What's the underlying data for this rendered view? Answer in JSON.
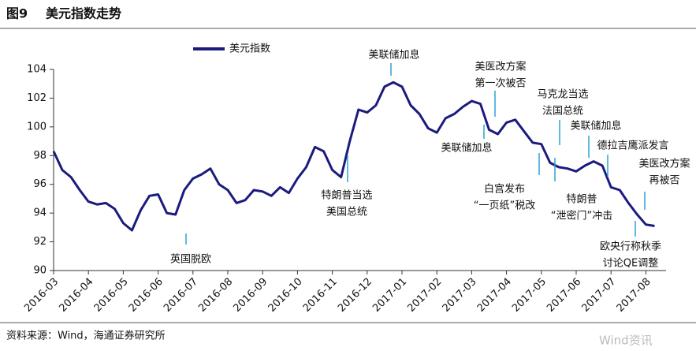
{
  "chart_data": {
    "type": "line",
    "figure_label": "图9",
    "title": "美元指数走势",
    "source": "资料来源：Wind，海通证券研究所",
    "watermark": "Wind资讯",
    "x": [
      "2016-03",
      null,
      null,
      null,
      "2016-04",
      null,
      null,
      null,
      "2016-05",
      null,
      null,
      null,
      "2016-06",
      null,
      null,
      null,
      "2016-07",
      null,
      null,
      null,
      "2016-08",
      null,
      null,
      null,
      "2016-09",
      null,
      null,
      null,
      "2016-10",
      null,
      null,
      null,
      "2016-11",
      null,
      null,
      null,
      "2016-12",
      null,
      null,
      null,
      "2017-01",
      null,
      null,
      null,
      "2017-02",
      null,
      null,
      null,
      "2017-03",
      null,
      null,
      null,
      "2017-04",
      null,
      null,
      null,
      "2017-05",
      null,
      null,
      null,
      "2017-06",
      null,
      null,
      null,
      "2017-07",
      null,
      null,
      null,
      "2017-08",
      null
    ],
    "series": [
      {
        "name": "美元指数",
        "color": "#1b1b7e",
        "values": [
          98.3,
          97.0,
          96.5,
          95.6,
          94.8,
          94.6,
          94.7,
          94.3,
          93.3,
          92.8,
          94.2,
          95.2,
          95.3,
          94.0,
          93.9,
          95.6,
          96.4,
          96.7,
          97.1,
          96.0,
          95.6,
          94.7,
          94.9,
          95.6,
          95.5,
          95.2,
          95.8,
          95.4,
          96.4,
          97.2,
          98.6,
          98.3,
          97.0,
          96.5,
          99.0,
          101.2,
          101.0,
          101.5,
          102.8,
          103.1,
          102.8,
          101.5,
          100.9,
          99.9,
          99.6,
          100.6,
          100.9,
          101.4,
          101.8,
          101.6,
          99.8,
          99.5,
          100.3,
          100.5,
          99.7,
          98.9,
          98.8,
          97.5,
          97.2,
          97.1,
          96.9,
          97.3,
          97.6,
          97.3,
          95.8,
          95.6,
          94.7,
          93.9,
          93.2,
          93.1
        ]
      }
    ],
    "ylim": [
      90,
      104
    ],
    "yticks": [
      90,
      92,
      94,
      96,
      98,
      100,
      102,
      104
    ],
    "annotations": [
      [
        "英国脱欧"
      ],
      [
        "特朗普当选",
        "美国总统"
      ],
      [
        "美联储加息"
      ],
      [
        "美联储加息"
      ],
      [
        "美医改方案",
        "第一次被否"
      ],
      [
        "马克龙当选",
        "法国总统"
      ],
      [
        "美联储加息"
      ],
      [
        "白宫发布",
        "“一页纸”税改"
      ],
      [
        "特朗普",
        "“泄密门”冲击"
      ],
      [
        "德拉吉鹰派发言"
      ],
      [
        "美医改方案",
        "再被否"
      ],
      [
        "欧央行称秋季",
        "讨论QE调整"
      ]
    ]
  }
}
